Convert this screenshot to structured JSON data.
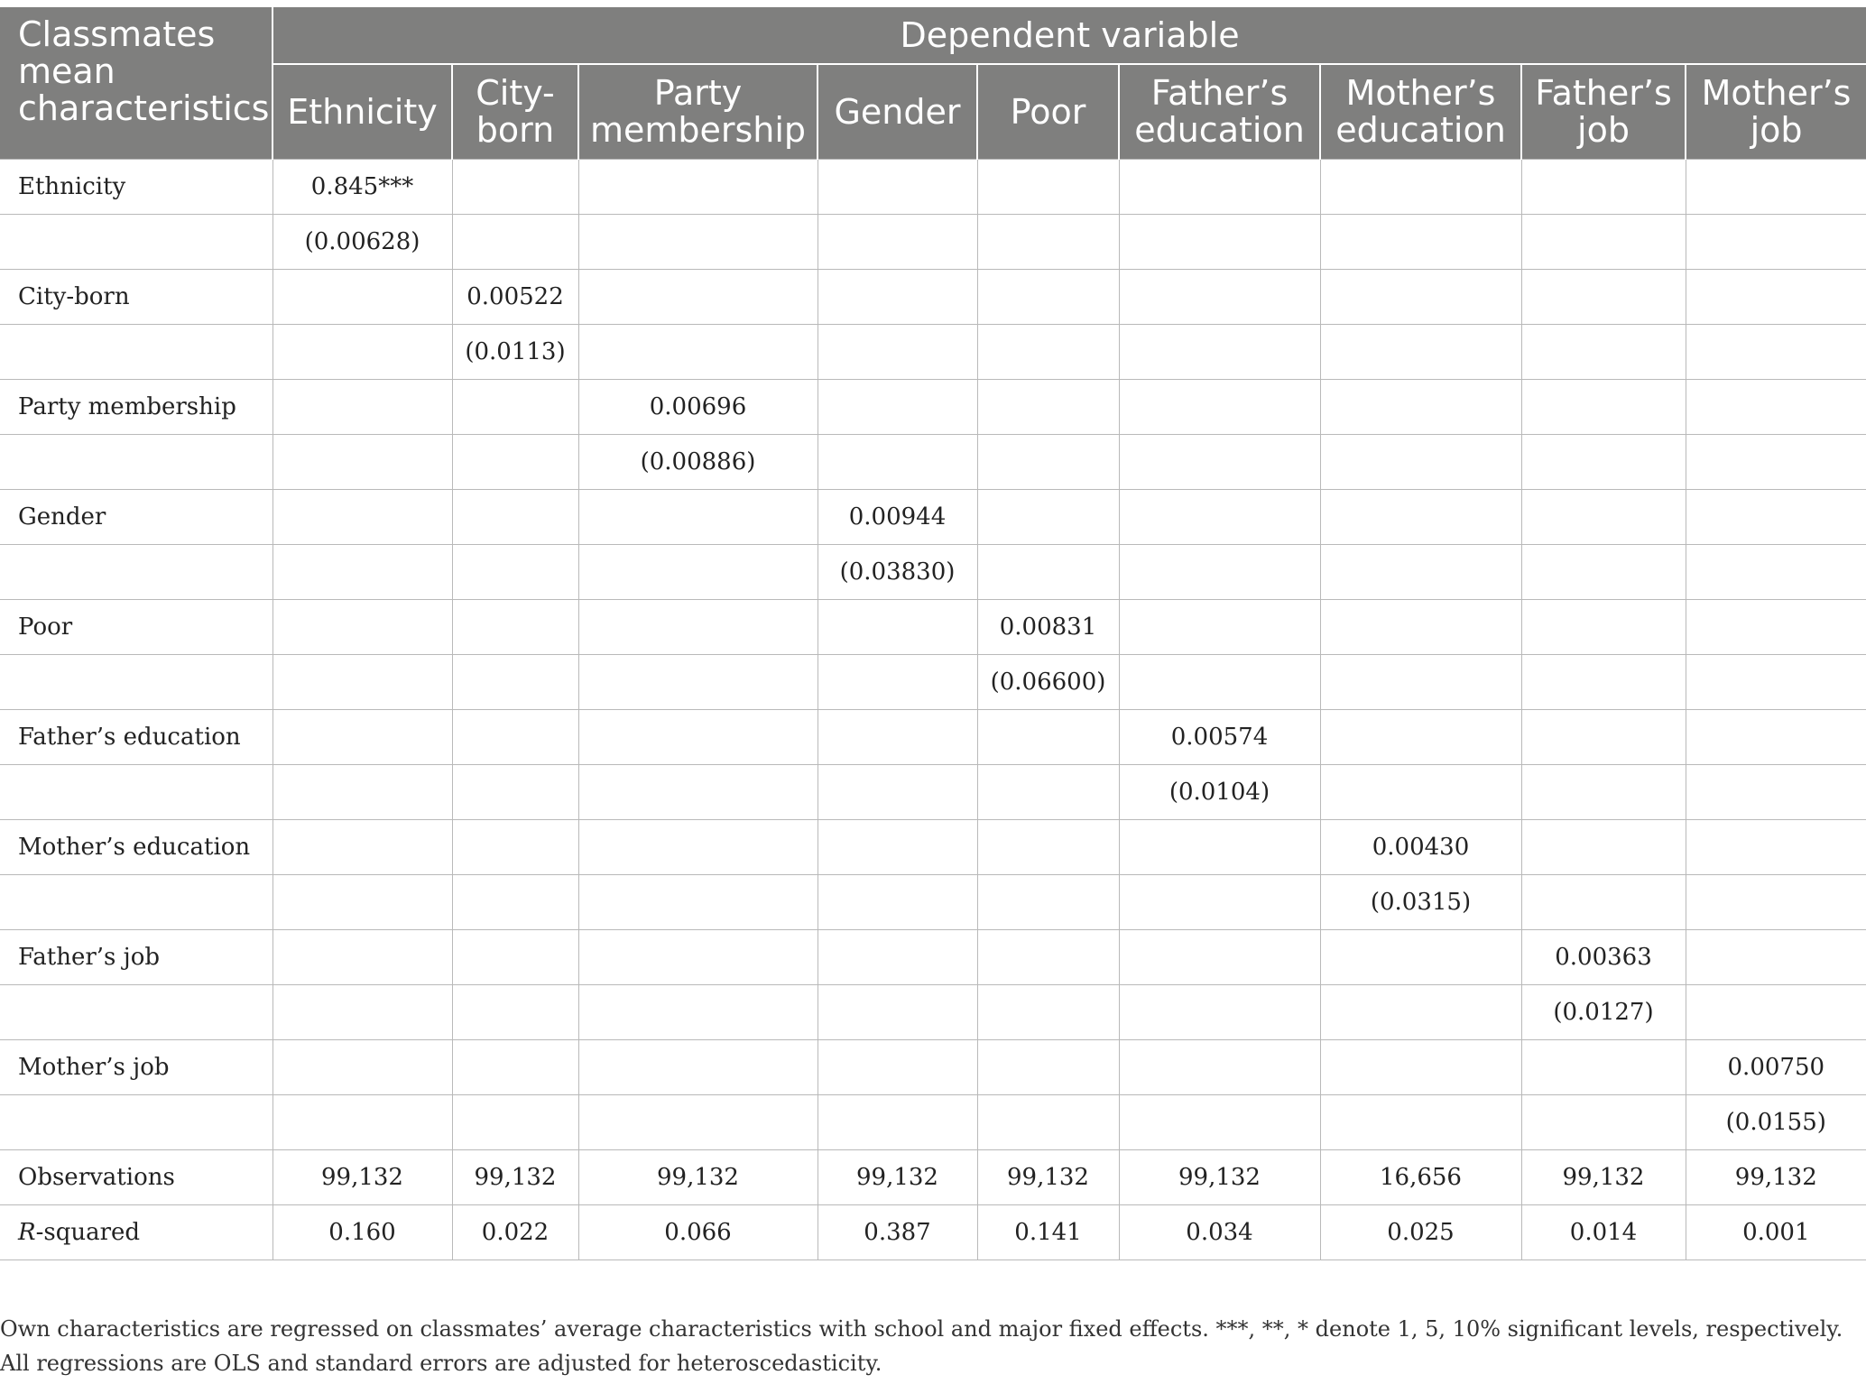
{
  "table": {
    "corner_header": "Classmates mean characteristics",
    "group_header": "Dependent variable",
    "columns": [
      "Ethnicity",
      "City-born",
      "Party membership",
      "Gender",
      "Poor",
      "Father’s education",
      "Mother’s education",
      "Father’s job",
      "Mother’s job"
    ],
    "rows": [
      {
        "label": "Ethnicity",
        "coef": "0.845***",
        "se": "(0.00628)"
      },
      {
        "label": "City-born",
        "coef": "0.00522",
        "se": "(0.0113)"
      },
      {
        "label": "Party membership",
        "coef": "0.00696",
        "se": "(0.00886)"
      },
      {
        "label": "Gender",
        "coef": "0.00944",
        "se": "(0.03830)"
      },
      {
        "label": "Poor",
        "coef": "0.00831",
        "se": "(0.06600)"
      },
      {
        "label": "Father’s education",
        "coef": "0.00574",
        "se": "(0.0104)"
      },
      {
        "label": "Mother’s education",
        "coef": "0.00430",
        "se": "(0.0315)"
      },
      {
        "label": "Father’s job",
        "coef": "0.00363",
        "se": "(0.0127)"
      },
      {
        "label": "Mother’s job",
        "coef": "0.00750",
        "se": "(0.0155)"
      }
    ],
    "observations": {
      "label": "Observations",
      "values": [
        "99,132",
        "99,132",
        "99,132",
        "99,132",
        "99,132",
        "99,132",
        "16,656",
        "99,132",
        "99,132"
      ]
    },
    "rsquared": {
      "label_italic": "R",
      "label_rest": "-squared",
      "values": [
        "0.160",
        "0.022",
        "0.066",
        "0.387",
        "0.141",
        "0.034",
        "0.025",
        "0.014",
        "0.001"
      ]
    }
  },
  "footnote": "Own characteristics are regressed on classmates’ average characteristics with school and major fixed effects. ***, **, * denote 1, 5, 10% significant levels, respectively. All regressions are OLS and standard errors are adjusted for heteroscedasticity."
}
